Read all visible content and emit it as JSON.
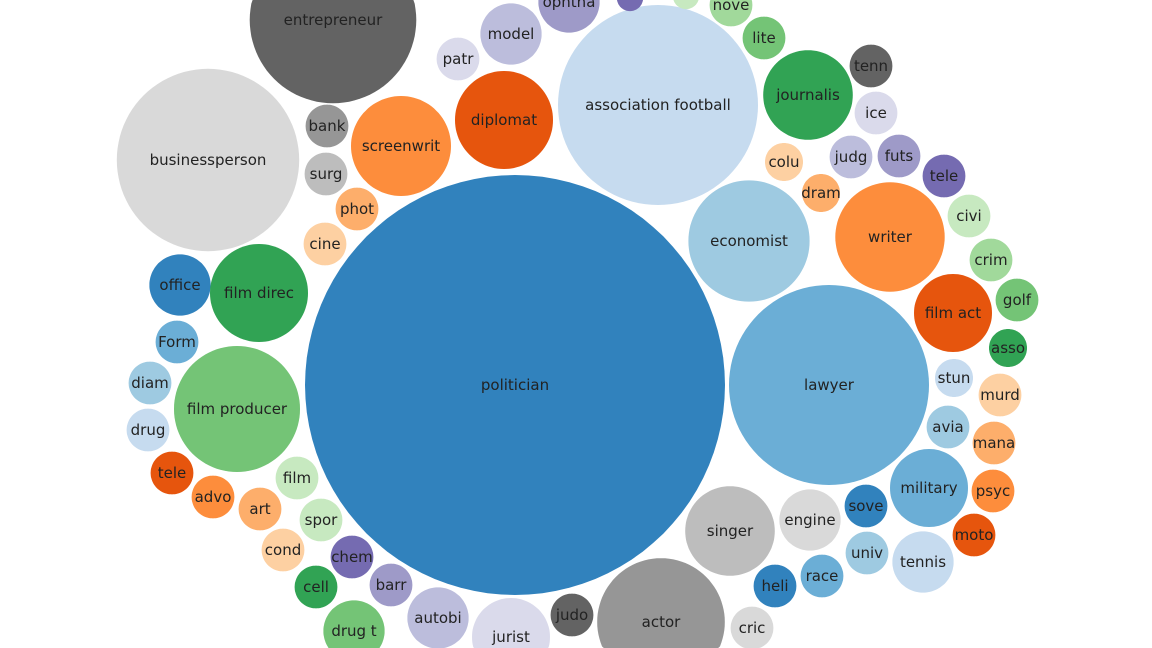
{
  "chart_data": {
    "type": "bubble",
    "title": "",
    "note": "values are relative bubble sizes estimated from circle areas; no numbers are printed",
    "palette": [
      "#3182bd",
      "#6baed6",
      "#9ecae1",
      "#c6dbef",
      "#e6550d",
      "#fd8d3c",
      "#fdae6b",
      "#fdd0a2",
      "#31a354",
      "#74c476",
      "#a1d99b",
      "#c7e9c0",
      "#756bb1",
      "#9e9ac8",
      "#bcbddc",
      "#dadaeb",
      "#636363",
      "#969696",
      "#bdbdbd",
      "#d9d9d9"
    ],
    "bubbles": [
      {
        "label": "entrepreneur",
        "value": 71,
        "color": "#636363"
      },
      {
        "label": "businessperson",
        "value": 85,
        "color": "#d9d9d9"
      },
      {
        "label": "politician",
        "value": 445,
        "color": "#3182bd"
      },
      {
        "label": "association football",
        "value": 102,
        "color": "#c6dbef"
      },
      {
        "label": "diplomat",
        "value": 25,
        "color": "#e6550d"
      },
      {
        "label": "screenwrit",
        "value": 26,
        "color": "#fd8d3c"
      },
      {
        "label": "model",
        "value": 10,
        "color": "#bcbddc"
      },
      {
        "label": "patr",
        "value": 5,
        "color": "#dadaeb"
      },
      {
        "label": "ophtha",
        "value": 10,
        "color": "#9e9ac8"
      },
      {
        "label": "",
        "value": 2,
        "color": "#756bb1"
      },
      {
        "label": "",
        "value": 2,
        "color": "#c7e9c0"
      },
      {
        "label": "nove",
        "value": 5,
        "color": "#a1d99b"
      },
      {
        "label": "lite",
        "value": 5,
        "color": "#74c476"
      },
      {
        "label": "journalis",
        "value": 21,
        "color": "#31a354"
      },
      {
        "label": "tenn",
        "value": 5,
        "color": "#636363"
      },
      {
        "label": "ice",
        "value": 5,
        "color": "#dadaeb"
      },
      {
        "label": "judg",
        "value": 5,
        "color": "#bcbddc"
      },
      {
        "label": "futs",
        "value": 5,
        "color": "#9e9ac8"
      },
      {
        "label": "tele",
        "value": 5,
        "color": "#756bb1"
      },
      {
        "label": "colu",
        "value": 4,
        "color": "#fdd0a2"
      },
      {
        "label": "dram",
        "value": 4,
        "color": "#fdae6b"
      },
      {
        "label": "economist",
        "value": 38,
        "color": "#9ecae1"
      },
      {
        "label": "writer",
        "value": 31,
        "color": "#fd8d3c"
      },
      {
        "label": "civi",
        "value": 5,
        "color": "#c7e9c0"
      },
      {
        "label": "crim",
        "value": 5,
        "color": "#a1d99b"
      },
      {
        "label": "golf",
        "value": 5,
        "color": "#74c476"
      },
      {
        "label": "film act",
        "value": 16,
        "color": "#e6550d"
      },
      {
        "label": "asso",
        "value": 4,
        "color": "#31a354"
      },
      {
        "label": "lawyer",
        "value": 102,
        "color": "#6baed6"
      },
      {
        "label": "stun",
        "value": 4,
        "color": "#c6dbef"
      },
      {
        "label": "murd",
        "value": 5,
        "color": "#fdd0a2"
      },
      {
        "label": "avia",
        "value": 5,
        "color": "#9ecae1"
      },
      {
        "label": "mana",
        "value": 5,
        "color": "#fdae6b"
      },
      {
        "label": "military",
        "value": 16,
        "color": "#6baed6"
      },
      {
        "label": "psyc",
        "value": 5,
        "color": "#fd8d3c"
      },
      {
        "label": "moto",
        "value": 5,
        "color": "#e6550d"
      },
      {
        "label": "sove",
        "value": 5,
        "color": "#3182bd"
      },
      {
        "label": "tennis",
        "value": 10,
        "color": "#c6dbef"
      },
      {
        "label": "univ",
        "value": 5,
        "color": "#9ecae1"
      },
      {
        "label": "engine",
        "value": 10,
        "color": "#d9d9d9"
      },
      {
        "label": "race",
        "value": 5,
        "color": "#6baed6"
      },
      {
        "label": "heli",
        "value": 5,
        "color": "#3182bd"
      },
      {
        "label": "singer",
        "value": 21,
        "color": "#bdbdbd"
      },
      {
        "label": "cric",
        "value": 5,
        "color": "#d9d9d9"
      },
      {
        "label": "actor",
        "value": 42,
        "color": "#969696"
      },
      {
        "label": "judo",
        "value": 5,
        "color": "#636363"
      },
      {
        "label": "jurist",
        "value": 16,
        "color": "#dadaeb"
      },
      {
        "label": "autobi",
        "value": 10,
        "color": "#bcbddc"
      },
      {
        "label": "barr",
        "value": 5,
        "color": "#9e9ac8"
      },
      {
        "label": "chem",
        "value": 5,
        "color": "#756bb1"
      },
      {
        "label": "cell",
        "value": 5,
        "color": "#31a354"
      },
      {
        "label": "drug t",
        "value": 10,
        "color": "#74c476"
      },
      {
        "label": "cond",
        "value": 5,
        "color": "#fdd0a2"
      },
      {
        "label": "spor",
        "value": 5,
        "color": "#c7e9c0"
      },
      {
        "label": "film",
        "value": 5,
        "color": "#c7e9c0"
      },
      {
        "label": "art",
        "value": 5,
        "color": "#fdae6b"
      },
      {
        "label": "advo",
        "value": 5,
        "color": "#fd8d3c"
      },
      {
        "label": "tele",
        "value": 5,
        "color": "#e6550d"
      },
      {
        "label": "film producer",
        "value": 41,
        "color": "#74c476"
      },
      {
        "label": "drug",
        "value": 5,
        "color": "#c6dbef"
      },
      {
        "label": "diam",
        "value": 5,
        "color": "#9ecae1"
      },
      {
        "label": "Form",
        "value": 5,
        "color": "#6baed6"
      },
      {
        "label": "office",
        "value": 10,
        "color": "#3182bd"
      },
      {
        "label": "film direc",
        "value": 25,
        "color": "#31a354"
      },
      {
        "label": "cine",
        "value": 5,
        "color": "#fdd0a2"
      },
      {
        "label": "phot",
        "value": 5,
        "color": "#fdae6b"
      },
      {
        "label": "surg",
        "value": 5,
        "color": "#bdbdbd"
      },
      {
        "label": "bank",
        "value": 5,
        "color": "#969696"
      }
    ]
  }
}
